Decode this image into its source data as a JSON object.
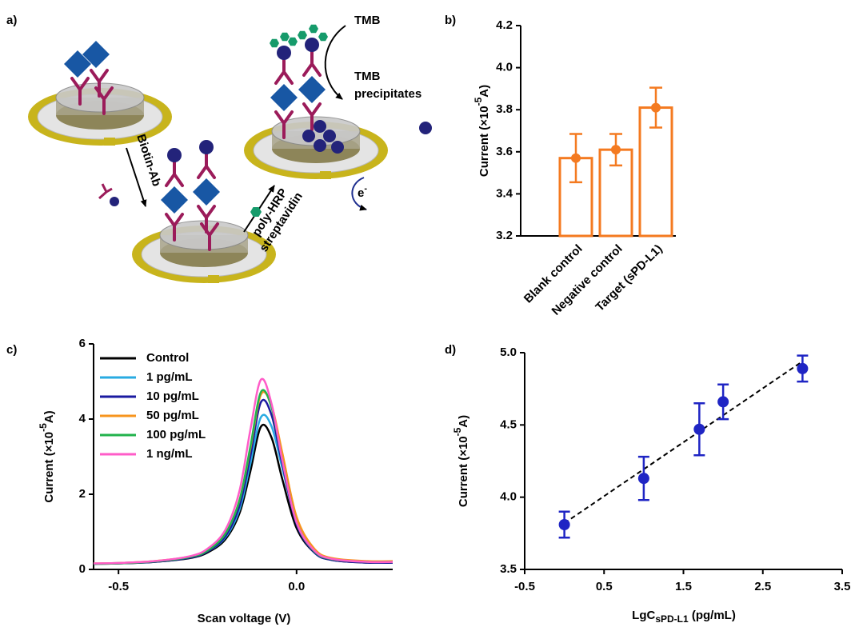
{
  "diagram": {
    "panel_label": "a)",
    "reagent": "TMB",
    "product": [
      "TMB",
      "precipitates"
    ],
    "step1": "Biotin-Ab",
    "step2": [
      "poly-HRP",
      "streptavidin"
    ],
    "electron": {
      "base": "e",
      "sup": "-"
    }
  },
  "chart_data": [
    {
      "type": "bar",
      "panel_label": "b)",
      "ylabel": [
        "Current (×10",
        "-5",
        "A)"
      ],
      "categories": [
        "Blank control",
        "Negative control",
        "Target (sPD-L1)"
      ],
      "values": [
        3.57,
        3.61,
        3.81
      ],
      "errors": [
        0.115,
        0.075,
        0.095
      ],
      "color": "#f47a20",
      "ylim": [
        3.2,
        4.2
      ],
      "yticks": [
        3.2,
        3.4,
        3.6,
        3.8,
        {
          "value": 4,
          "label": "4.0"
        },
        4.2
      ]
    },
    {
      "type": "line",
      "panel_label": "c)",
      "xlabel": "Scan voltage (V)",
      "ylabel": [
        "Current (×10",
        "-5",
        "A)"
      ],
      "x": [
        -0.57,
        -0.5,
        -0.4,
        -0.3,
        -0.25,
        -0.2,
        -0.16,
        -0.13,
        -0.1,
        -0.07,
        -0.04,
        0,
        0.05,
        0.1,
        0.2,
        0.27
      ],
      "series": [
        {
          "name": "Control",
          "color": "#000000",
          "values": [
            0.15,
            0.16,
            0.2,
            0.3,
            0.45,
            0.8,
            1.5,
            2.6,
            3.8,
            3.5,
            2.4,
            1.1,
            0.45,
            0.25,
            0.18,
            0.18
          ]
        },
        {
          "name": "1 pg/mL",
          "color": "#29abe2",
          "values": [
            0.15,
            0.17,
            0.21,
            0.32,
            0.48,
            0.85,
            1.6,
            2.8,
            4.05,
            3.8,
            2.7,
            1.25,
            0.5,
            0.28,
            0.2,
            0.2
          ]
        },
        {
          "name": "10 pg/mL",
          "color": "#1a1aa0",
          "values": [
            0.15,
            0.16,
            0.2,
            0.31,
            0.48,
            0.88,
            1.7,
            3.0,
            4.45,
            4.1,
            2.8,
            1.2,
            0.45,
            0.25,
            0.18,
            0.18
          ]
        },
        {
          "name": "50 pg/mL",
          "color": "#f7941d",
          "values": [
            0.16,
            0.17,
            0.22,
            0.34,
            0.52,
            0.95,
            1.85,
            3.2,
            4.65,
            4.35,
            3.1,
            1.4,
            0.55,
            0.3,
            0.22,
            0.22
          ]
        },
        {
          "name": "100 pg/mL",
          "color": "#22b24c",
          "values": [
            0.15,
            0.16,
            0.21,
            0.33,
            0.5,
            0.95,
            1.85,
            3.25,
            4.72,
            4.3,
            2.9,
            1.25,
            0.48,
            0.27,
            0.2,
            0.2
          ]
        },
        {
          "name": "1 ng/mL",
          "color": "#ff5cc8",
          "values": [
            0.16,
            0.17,
            0.22,
            0.35,
            0.55,
            1.05,
            2.1,
            3.7,
            5.05,
            4.4,
            2.9,
            1.25,
            0.5,
            0.28,
            0.2,
            0.2
          ]
        }
      ],
      "xlim": [
        -0.57,
        0.27
      ],
      "xticks": [
        -0.5,
        {
          "value": 0,
          "label": "0.0"
        }
      ],
      "ylim": [
        0,
        6
      ],
      "yticks": [
        0,
        2,
        4,
        6
      ],
      "legend": "upper left"
    },
    {
      "type": "scatter",
      "panel_label": "d)",
      "xlabel": [
        "LgC",
        "sPD-L1",
        " (pg/mL)"
      ],
      "ylabel": [
        "Current (×10",
        "-5",
        "A)"
      ],
      "x": [
        0,
        1,
        1.7,
        2,
        3
      ],
      "values": [
        3.81,
        4.13,
        4.47,
        4.66,
        4.89
      ],
      "errors": [
        0.09,
        0.15,
        0.18,
        0.12,
        0.09
      ],
      "color": "#1f25c4",
      "fit": {
        "x": [
          0,
          3
        ],
        "values": [
          3.82,
          4.94
        ]
      },
      "xlim": [
        -0.5,
        3.5
      ],
      "xticks": [
        -0.5,
        0.5,
        1.5,
        2.5,
        3.5
      ],
      "ylim": [
        3.5,
        5
      ],
      "yticks": [
        3.5,
        {
          "value": 4,
          "label": "4.0"
        },
        4.5,
        {
          "value": 5,
          "label": "5.0"
        }
      ]
    }
  ]
}
